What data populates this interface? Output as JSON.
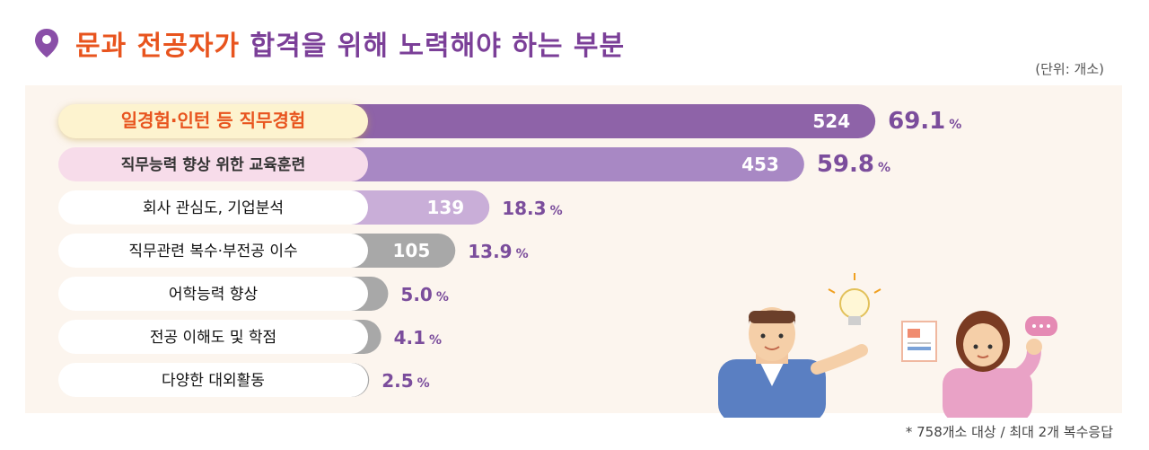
{
  "title": {
    "highlight": "문과 전공자가",
    "rest": "합격을 위해 노력해야 하는 부분"
  },
  "unit_note": "(단위: 개소)",
  "footnote": "* 758개소 대상 / 최대 2개 복수응답",
  "chart_data": {
    "type": "bar",
    "orientation": "horizontal",
    "categories": [
      "일경험·인턴 등 직무경험",
      "직무능력 향상 위한 교육훈련",
      "회사 관심도, 기업분석",
      "직무관련 복수·부전공 이수",
      "어학능력 향상",
      "전공 이해도 및 학점",
      "다양한 대외활동"
    ],
    "values": [
      524,
      453,
      139,
      105,
      38,
      31,
      19
    ],
    "percentages": [
      "69.1",
      "59.8",
      "18.3",
      "13.9",
      "5.0",
      "4.1",
      "2.5"
    ],
    "percent_unit": "%",
    "colors": [
      "#8e63a8",
      "#a888c4",
      "#c9aed8",
      "#a8a8a8",
      "#a8a8a8",
      "#a8a8a8",
      "#a8a8a8"
    ],
    "label_bg": [
      "#fdf3cf",
      "#f7dcea",
      "#ffffff",
      "#ffffff",
      "#ffffff",
      "#ffffff",
      "#ffffff"
    ],
    "label_color": [
      "#e8541e",
      "#333333",
      "#111111",
      "#111111",
      "#111111",
      "#111111",
      "#111111"
    ],
    "pct_color": "#7b4d9c",
    "xlim": [
      0,
      600
    ]
  }
}
